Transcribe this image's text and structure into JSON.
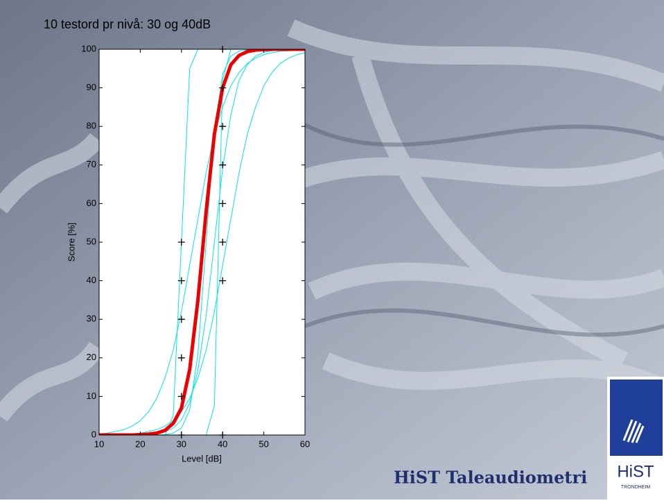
{
  "chart_data": {
    "type": "line",
    "title": "10 testord pr nivå: 30 og 40dB",
    "xlabel": "Level [dB]",
    "ylabel": "Score [%]",
    "x": [
      10,
      12,
      14,
      16,
      18,
      20,
      22,
      24,
      26,
      28,
      30,
      32,
      34,
      36,
      38,
      40,
      42,
      44,
      46,
      48,
      50,
      52,
      54,
      56,
      58,
      60
    ],
    "series": [
      {
        "color": "#00e5e5",
        "width": 1,
        "values": [
          0,
          0,
          0,
          0,
          0,
          0,
          0,
          0,
          0,
          5,
          50,
          95,
          100,
          100,
          100,
          100,
          100,
          100,
          100,
          100,
          100,
          100,
          100,
          100,
          100,
          100
        ]
      },
      {
        "color": "#00e5e5",
        "width": 1,
        "values": [
          0,
          0,
          0,
          0,
          0,
          0,
          0,
          0,
          0,
          0,
          0,
          0,
          0,
          0,
          7.6,
          92,
          100,
          100,
          100,
          100,
          100,
          100,
          100,
          100,
          100,
          100
        ]
      },
      {
        "color": "#00e5e5",
        "width": 1,
        "values": [
          0.3,
          0.5,
          0.9,
          1.4,
          2.3,
          3.7,
          6,
          9.5,
          14.8,
          22,
          32,
          44,
          56,
          68,
          78,
          85,
          90.5,
          94,
          96.3,
          97.7,
          98.6,
          99.1,
          99.5,
          99.6,
          99.8,
          99.9
        ]
      },
      {
        "color": "#00e5e5",
        "width": 1,
        "values": [
          0,
          0.1,
          0.1,
          0.2,
          0.3,
          0.5,
          0.9,
          1.4,
          2.3,
          3.7,
          6,
          9.5,
          14.8,
          22,
          32,
          44,
          56,
          68,
          78,
          85,
          90.5,
          94,
          96.3,
          97.7,
          98.6,
          99.1
        ]
      },
      {
        "color": "#00e5e5",
        "width": 1,
        "values": [
          0,
          0,
          0,
          0,
          0,
          0,
          0,
          0,
          0.1,
          0.5,
          1.8,
          6.5,
          21,
          50,
          79,
          93.5,
          98.2,
          99.5,
          99.9,
          100,
          100,
          100,
          100,
          100,
          100,
          100
        ]
      },
      {
        "color": "#00e5e5",
        "width": 1,
        "values": [
          0,
          0,
          0,
          0,
          0.1,
          0.2,
          0.2,
          0.4,
          0.8,
          1.8,
          3.9,
          8.3,
          16.8,
          31,
          50,
          69,
          83,
          92,
          96,
          98.2,
          99.2,
          99.6,
          99.8,
          99.9,
          100,
          100
        ]
      },
      {
        "color": "#ee0000",
        "width": 5,
        "values": [
          0,
          0,
          0,
          0,
          0,
          0.1,
          0.2,
          0.5,
          1.2,
          3,
          7,
          17,
          35,
          58,
          78,
          90,
          96,
          98.4,
          99.4,
          99.8,
          99.9,
          100,
          100,
          100,
          100,
          100
        ]
      }
    ],
    "markers": {
      "x": [
        30,
        30,
        30,
        30,
        30,
        30,
        40,
        40,
        40,
        40,
        40,
        40,
        40,
        40
      ],
      "y": [
        0,
        10,
        20,
        30,
        40,
        50,
        0,
        40,
        50,
        60,
        70,
        80,
        90,
        100
      ]
    },
    "xlim": [
      10,
      60
    ],
    "ylim": [
      0,
      100
    ],
    "xticks": [
      10,
      20,
      30,
      40,
      50,
      60
    ],
    "yticks": [
      0,
      10,
      20,
      30,
      40,
      50,
      60,
      70,
      80,
      90,
      100
    ]
  },
  "footer": {
    "text": "HiST Taleaudiometri"
  },
  "logo": {
    "name": "HiST",
    "place": "TRONDHEIM"
  }
}
